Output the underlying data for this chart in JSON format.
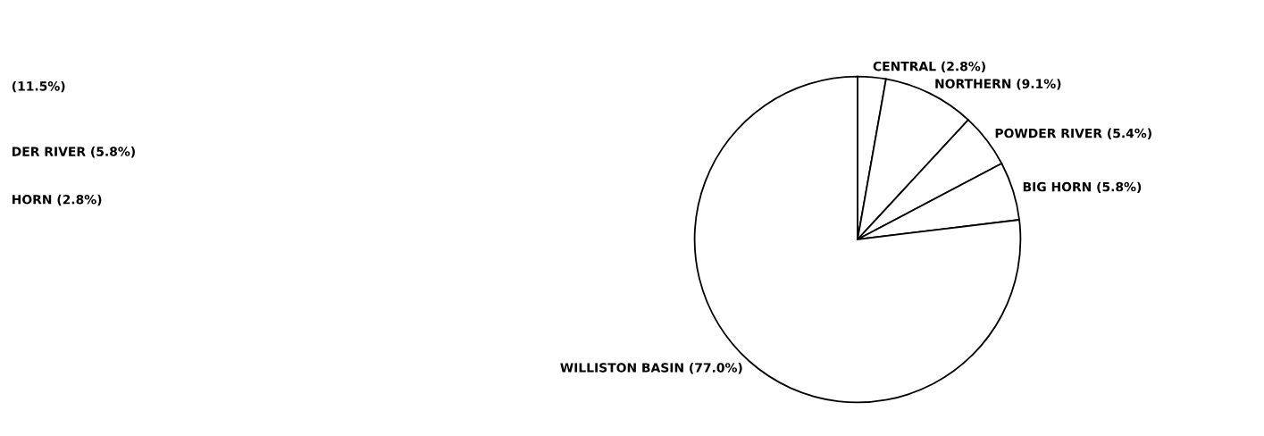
{
  "chart_data": [
    {
      "type": "other",
      "annotations": [
        "(11.5%)",
        "DER RIVER (5.8%)",
        "HORN (2.8%)"
      ]
    },
    {
      "type": "pie",
      "categories": [
        "CENTRAL (2.8%)",
        "NORTHERN (9.1%)",
        "POWDER RIVER (5.4%)",
        "BIG HORN (5.8%)",
        "WILLISTON BASIN (77.0%)"
      ],
      "values": [
        2.8,
        9.1,
        5.4,
        5.8,
        77.0
      ],
      "colors": [
        "#ffffff",
        "#ffffff",
        "#ffffff",
        "#ffffff",
        "#ffffff"
      ]
    }
  ]
}
